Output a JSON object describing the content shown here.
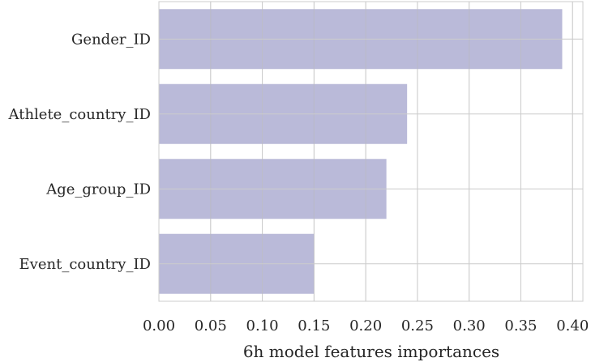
{
  "chart_data": {
    "type": "bar",
    "orientation": "horizontal",
    "categories": [
      "Gender_ID",
      "Athlete_country_ID",
      "Age_group_ID",
      "Event_country_ID"
    ],
    "values": [
      0.39,
      0.24,
      0.22,
      0.15
    ],
    "xlabel": "6h model features importances",
    "ylabel": "",
    "xlim": [
      0,
      0.41
    ],
    "xticks": [
      0.0,
      0.05,
      0.1,
      0.15,
      0.2,
      0.25,
      0.3,
      0.35,
      0.4
    ],
    "xtick_labels": [
      "0.00",
      "0.05",
      "0.10",
      "0.15",
      "0.20",
      "0.25",
      "0.30",
      "0.35",
      "0.40"
    ],
    "grid": true,
    "bar_color": "#8C8CBF",
    "bar_opacity": 0.6,
    "grid_color": "#cccccc",
    "spine_color": "#cccccc"
  }
}
